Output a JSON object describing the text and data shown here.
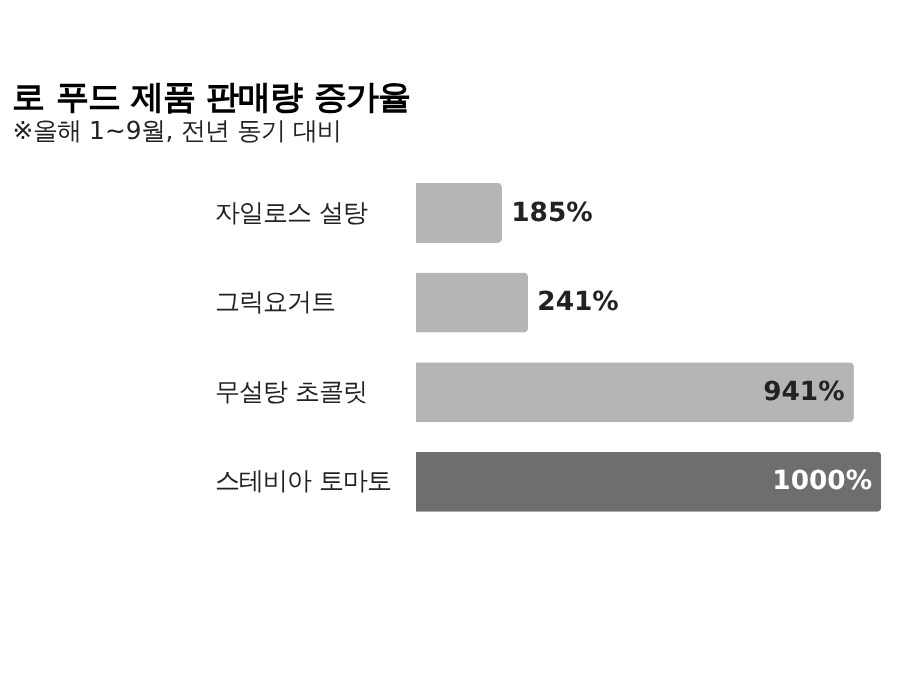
{
  "chart_data": {
    "type": "bar",
    "orientation": "horizontal",
    "title": "로 푸드 제품 판매량 증가율",
    "subtitle": "※올해 1~9월, 전년 동기 대비",
    "categories": [
      "자일로스 설탕",
      "그릭요거트",
      "무설탕 초콜릿",
      "스테비아 토마토"
    ],
    "values": [
      185,
      241,
      941,
      1000
    ],
    "value_labels": [
      "185%",
      "241%",
      "941%",
      "1000%"
    ],
    "colors": [
      "#b5b5b5",
      "#b5b5b5",
      "#b5b5b5",
      "#6e6e6e"
    ],
    "grid": false,
    "legend": false
  }
}
